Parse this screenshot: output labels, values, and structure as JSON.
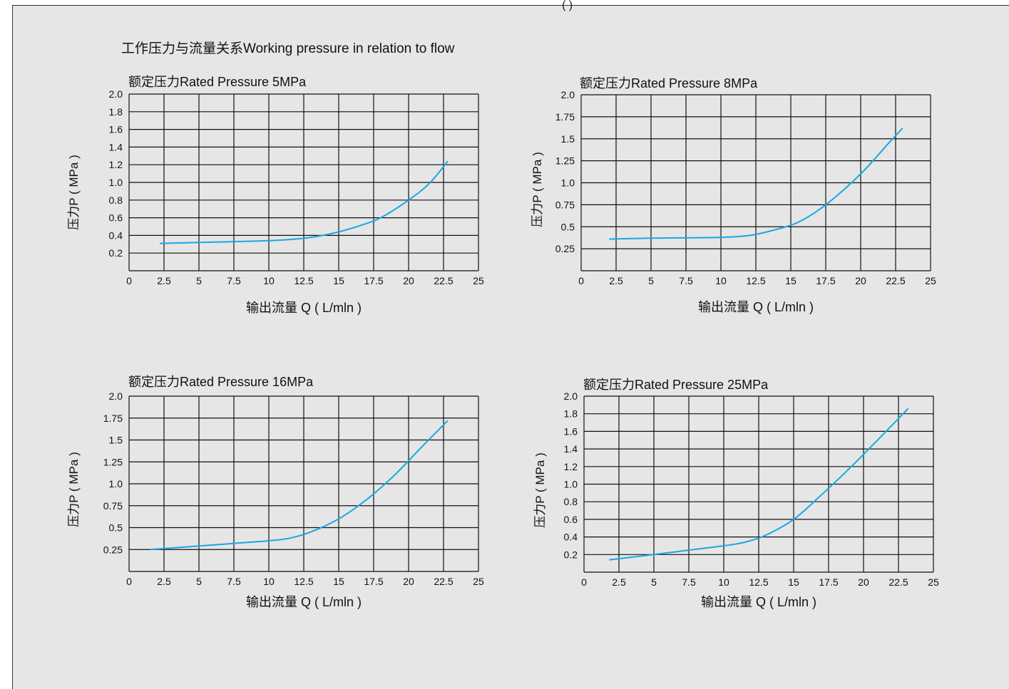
{
  "page": {
    "heading": "工作压力与流量关系Working pressure in relation to flow",
    "top_fragment": "(                                                                          )"
  },
  "colors": {
    "curve": "#1aa7e6",
    "grid": "#111111",
    "background": "#e6e6e6"
  },
  "chart_data": [
    {
      "type": "line",
      "title": "额定压力Rated Pressure 5MPa",
      "xlabel": "输出流量 Q ( L/mln )",
      "ylabel": "压力P ( MPa )",
      "xlim": [
        0,
        25
      ],
      "ylim": [
        0,
        2.0
      ],
      "x_ticks": [
        "0",
        "2.5",
        "5",
        "7.5",
        "10",
        "12.5",
        "15",
        "17.5",
        "20",
        "22.5",
        "25"
      ],
      "y_ticks": [
        "0.2",
        "0.4",
        "0.6",
        "0.8",
        "1.0",
        "1.2",
        "1.4",
        "1.6",
        "1.8",
        "2.0"
      ],
      "y_tick_values": [
        0.2,
        0.4,
        0.6,
        0.8,
        1.0,
        1.2,
        1.4,
        1.6,
        1.8,
        2.0
      ],
      "grid": true,
      "series": [
        {
          "x": [
            2.2,
            5,
            7.5,
            10,
            12,
            13.5,
            15,
            16.5,
            18,
            20,
            21.5,
            22.8
          ],
          "y": [
            0.31,
            0.32,
            0.33,
            0.34,
            0.36,
            0.39,
            0.44,
            0.51,
            0.6,
            0.8,
            0.99,
            1.24
          ]
        }
      ]
    },
    {
      "type": "line",
      "title": "额定压力Rated Pressure 8MPa",
      "xlabel": "输出流量 Q ( L/mln )",
      "ylabel": "压力P ( MPa )",
      "xlim": [
        0,
        25
      ],
      "ylim": [
        0,
        2.0
      ],
      "x_ticks": [
        "0",
        "2.5",
        "5",
        "7.5",
        "10",
        "12.5",
        "15",
        "17.5",
        "20",
        "22.5",
        "25"
      ],
      "y_ticks": [
        "0.25",
        "0.5",
        "0.75",
        "1.0",
        "1.25",
        "1.5",
        "1.75",
        "2.0"
      ],
      "y_tick_values": [
        0.25,
        0.5,
        0.75,
        1.0,
        1.25,
        1.5,
        1.75,
        2.0
      ],
      "grid": true,
      "series": [
        {
          "x": [
            2,
            5,
            7.5,
            10,
            12,
            13.5,
            15.5,
            17.5,
            20,
            22,
            23
          ],
          "y": [
            0.36,
            0.37,
            0.375,
            0.38,
            0.4,
            0.45,
            0.55,
            0.75,
            1.1,
            1.45,
            1.62
          ]
        }
      ]
    },
    {
      "type": "line",
      "title": "额定压力Rated Pressure 16MPa",
      "xlabel": "输出流量 Q ( L/mln )",
      "ylabel": "压力P ( MPa )",
      "xlim": [
        0,
        25
      ],
      "ylim": [
        0,
        2.0
      ],
      "x_ticks": [
        "0",
        "2.5",
        "5",
        "7.5",
        "10",
        "12.5",
        "15",
        "17.5",
        "20",
        "22.5",
        "25"
      ],
      "y_ticks": [
        "0.25",
        "0.5",
        "0.75",
        "1.0",
        "1.25",
        "1.5",
        "1.75",
        "2.0"
      ],
      "y_tick_values": [
        0.25,
        0.5,
        0.75,
        1.0,
        1.25,
        1.5,
        1.75,
        2.0
      ],
      "grid": true,
      "series": [
        {
          "x": [
            1.5,
            5,
            7.5,
            10,
            11.5,
            13,
            15,
            17,
            19,
            21,
            22.8
          ],
          "y": [
            0.25,
            0.29,
            0.32,
            0.35,
            0.38,
            0.45,
            0.6,
            0.82,
            1.1,
            1.43,
            1.72
          ]
        }
      ]
    },
    {
      "type": "line",
      "title": "额定压力Rated Pressure 25MPa",
      "xlabel": "输出流量 Q ( L/mln )",
      "ylabel": "压力P ( MPa )",
      "xlim": [
        0,
        25
      ],
      "ylim": [
        0,
        2.0
      ],
      "x_ticks": [
        "0",
        "2.5",
        "5",
        "7.5",
        "10",
        "12.5",
        "15",
        "17.5",
        "20",
        "22.5",
        "25"
      ],
      "y_ticks": [
        "0.2",
        "0.4",
        "0.6",
        "0.8",
        "1.0",
        "1.2",
        "1.4",
        "1.6",
        "1.8",
        "2.0"
      ],
      "y_tick_values": [
        0.2,
        0.4,
        0.6,
        0.8,
        1.0,
        1.2,
        1.4,
        1.6,
        1.8,
        2.0
      ],
      "grid": true,
      "series": [
        {
          "x": [
            1.8,
            5,
            7.5,
            10,
            11.5,
            13,
            15,
            17,
            19,
            21,
            23.2
          ],
          "y": [
            0.14,
            0.2,
            0.25,
            0.3,
            0.34,
            0.42,
            0.6,
            0.88,
            1.18,
            1.5,
            1.86
          ]
        }
      ]
    }
  ]
}
